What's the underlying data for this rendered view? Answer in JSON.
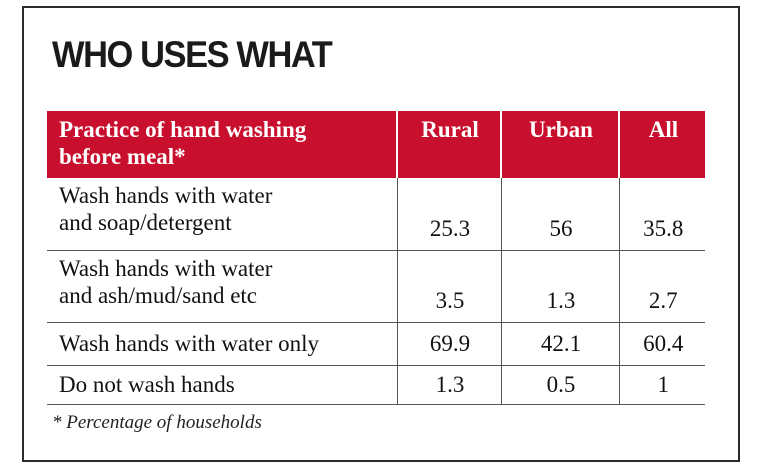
{
  "title": "WHO USES WHAT",
  "footnote": "* Percentage of households",
  "chart_data": {
    "type": "table",
    "title": "WHO USES WHAT",
    "columns": [
      "Practice of hand washing before meal*",
      "Rural",
      "Urban",
      "All"
    ],
    "header_lines": [
      "Practice of hand washing",
      "before meal*"
    ],
    "rows": [
      {
        "label_lines": [
          "Wash hands with water",
          "and soap/detergent"
        ],
        "rural": "25.3",
        "urban": "56",
        "all": "35.8"
      },
      {
        "label_lines": [
          "Wash hands with water",
          "and ash/mud/sand etc"
        ],
        "rural": "3.5",
        "urban": "1.3",
        "all": "2.7"
      },
      {
        "label_lines": [
          "Wash hands with water only"
        ],
        "rural": "69.9",
        "urban": "42.1",
        "all": "60.4"
      },
      {
        "label_lines": [
          "Do not wash hands"
        ],
        "rural": "1.3",
        "urban": "0.5",
        "all": "1"
      }
    ],
    "header_color": "#c8102e",
    "footnote": "* Percentage of households"
  }
}
